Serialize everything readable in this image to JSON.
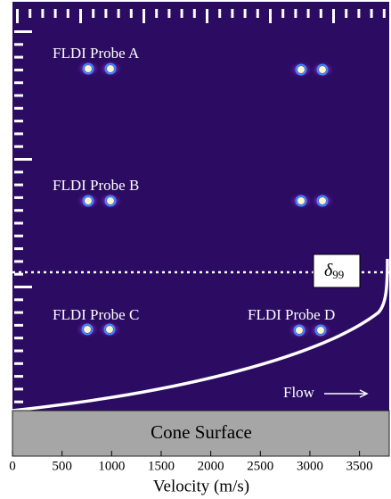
{
  "chart_data": {
    "type": "image-profile",
    "xlabel": "Velocity (m/s)",
    "xlim": [
      0,
      3800
    ],
    "xticks": [
      0,
      500,
      1000,
      1500,
      2000,
      2500,
      3000,
      3500
    ],
    "probe_labels": [
      "FLDI Probe A",
      "FLDI Probe B",
      "FLDI Probe C",
      "FLDI Probe D"
    ],
    "boundary_symbol": "δ",
    "boundary_subscript": "99",
    "flow_label": "Flow",
    "surface_label": "Cone Surface"
  }
}
